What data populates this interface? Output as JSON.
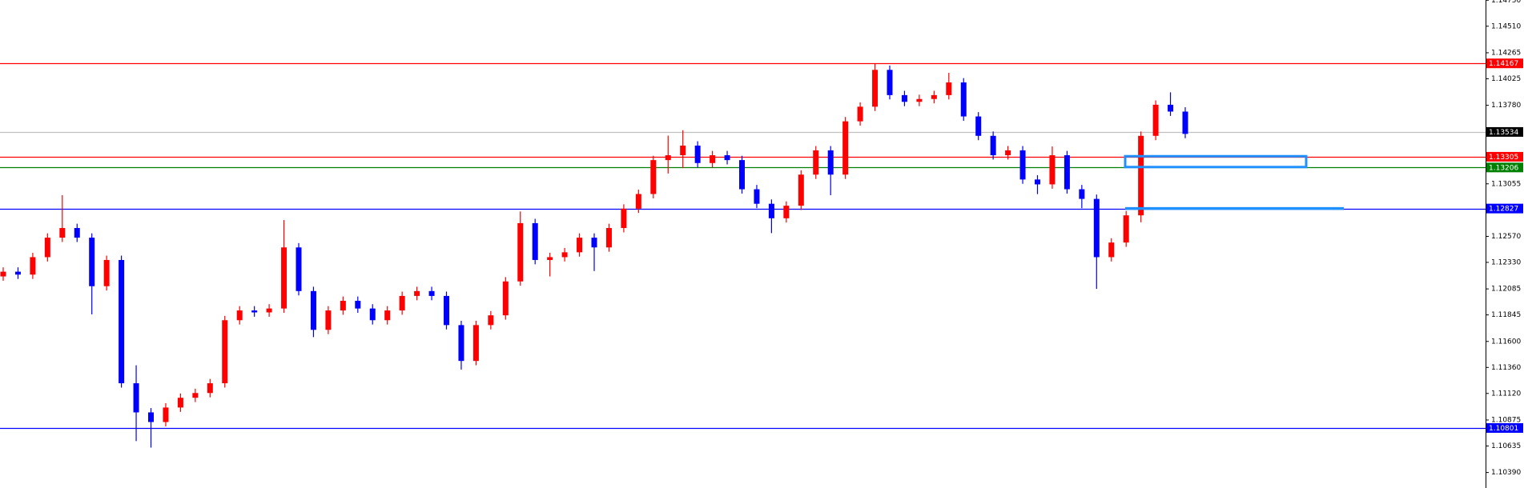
{
  "chart_data": {
    "type": "candlestick",
    "up_color": "#ff0000",
    "down_color": "#0000ff",
    "ylim": [
      1.10247,
      1.14752
    ],
    "yticks": [
      {
        "value": 1.1475,
        "label": "1.14750"
      },
      {
        "value": 1.1451,
        "label": "1.14510"
      },
      1.14265,
      1.14025,
      {
        "value": 1.1378,
        "label": "1.13780"
      },
      1.13055,
      {
        "value": 1.1257,
        "label": "1.12570"
      },
      {
        "value": 1.1233,
        "label": "1.12330"
      },
      1.12085,
      1.11845,
      {
        "value": 1.116,
        "label": "1.11600"
      },
      {
        "value": 1.1136,
        "label": "1.11360"
      },
      {
        "value": 1.1112,
        "label": "1.11120"
      },
      1.10875,
      1.10635,
      {
        "value": 1.1039,
        "label": "1.10390"
      }
    ],
    "open": [
      1.122,
      1.12244,
      1.12217,
      1.12378,
      1.12558,
      1.12647,
      1.12558,
      1.1211,
      1.12352,
      1.11214,
      1.10945,
      1.10856,
      1.1099,
      1.1108,
      1.11124,
      1.11214,
      1.11796,
      1.11886,
      1.11868,
      1.11904,
      1.12468,
      1.12065,
      1.11707,
      1.11886,
      1.11975,
      1.11904,
      1.11796,
      1.11886,
      1.1202,
      1.12065,
      1.1202,
      1.11751,
      1.1142,
      1.11751,
      1.11841,
      1.12154,
      1.12692,
      1.12352,
      1.12378,
      1.12423,
      1.12558,
      1.12468,
      1.12647,
      1.12826,
      1.12961,
      1.13274,
      1.13319,
      1.13408,
      1.13247,
      1.13319,
      1.13274,
      1.13005,
      1.12871,
      1.12737,
      1.12853,
      1.1314,
      1.13364,
      1.1314,
      1.13632,
      1.13767,
      1.14107,
      1.13874,
      1.13812,
      1.13838,
      1.13874,
      1.13991,
      1.13677,
      1.13498,
      1.13319,
      1.13364,
      1.13095,
      1.1305,
      1.13319,
      1.13005,
      1.12916,
      1.12378,
      1.12513,
      1.12764,
      1.13498,
      1.13785,
      1.13722
    ],
    "high": [
      1.12284,
      1.12284,
      1.12418,
      1.12598,
      1.1295,
      1.12687,
      1.12598,
      1.12392,
      1.12392,
      1.1138,
      1.10985,
      1.1103,
      1.1112,
      1.11164,
      1.11254,
      1.11836,
      1.11926,
      1.11926,
      1.11944,
      1.1272,
      1.12508,
      1.12105,
      1.11926,
      1.12015,
      1.12015,
      1.11944,
      1.11926,
      1.1206,
      1.12105,
      1.12105,
      1.1206,
      1.11791,
      1.11791,
      1.11881,
      1.12194,
      1.128,
      1.12732,
      1.12418,
      1.12463,
      1.12598,
      1.12598,
      1.12687,
      1.12866,
      1.13001,
      1.13314,
      1.135,
      1.1355,
      1.13448,
      1.13359,
      1.13359,
      1.13314,
      1.13045,
      1.12911,
      1.12893,
      1.1318,
      1.13404,
      1.13404,
      1.13672,
      1.13807,
      1.14167,
      1.14147,
      1.13914,
      1.13878,
      1.13914,
      1.1408,
      1.14031,
      1.13717,
      1.13538,
      1.13404,
      1.13404,
      1.13135,
      1.134,
      1.13359,
      1.13045,
      1.12956,
      1.12553,
      1.12804,
      1.13538,
      1.13825,
      1.139,
      1.13762
    ],
    "low": [
      1.1216,
      1.12177,
      1.12177,
      1.12338,
      1.12518,
      1.12518,
      1.1185,
      1.1207,
      1.11174,
      1.1068,
      1.1062,
      1.10816,
      1.1095,
      1.1104,
      1.11084,
      1.11174,
      1.11756,
      1.11828,
      1.11828,
      1.11864,
      1.12025,
      1.1164,
      1.11667,
      1.11846,
      1.11864,
      1.11756,
      1.11756,
      1.11846,
      1.1198,
      1.1198,
      1.11711,
      1.1134,
      1.1138,
      1.11711,
      1.11801,
      1.12114,
      1.12312,
      1.122,
      1.12338,
      1.12383,
      1.1225,
      1.12428,
      1.12607,
      1.12786,
      1.12921,
      1.1315,
      1.132,
      1.13207,
      1.13207,
      1.13234,
      1.12965,
      1.12831,
      1.126,
      1.12697,
      1.12813,
      1.131,
      1.1295,
      1.131,
      1.13592,
      1.13727,
      1.13834,
      1.13772,
      1.13772,
      1.13798,
      1.13834,
      1.13637,
      1.13458,
      1.13279,
      1.13279,
      1.13055,
      1.1296,
      1.1301,
      1.12965,
      1.1283,
      1.12085,
      1.12338,
      1.12473,
      1.127,
      1.13458,
      1.13682,
      1.13476
    ],
    "close": [
      1.12244,
      1.12217,
      1.12378,
      1.12558,
      1.12647,
      1.12558,
      1.1211,
      1.12352,
      1.11214,
      1.10945,
      1.10856,
      1.1099,
      1.1108,
      1.11124,
      1.11214,
      1.11796,
      1.11886,
      1.11868,
      1.11904,
      1.12468,
      1.12065,
      1.11707,
      1.11886,
      1.11975,
      1.11904,
      1.11796,
      1.11886,
      1.1202,
      1.12065,
      1.1202,
      1.11751,
      1.1142,
      1.11751,
      1.11841,
      1.12154,
      1.12692,
      1.12352,
      1.12378,
      1.12423,
      1.12558,
      1.12468,
      1.12647,
      1.12826,
      1.12961,
      1.13274,
      1.13319,
      1.13408,
      1.13247,
      1.13319,
      1.13274,
      1.13005,
      1.12871,
      1.12737,
      1.12853,
      1.1314,
      1.13364,
      1.1314,
      1.13632,
      1.13767,
      1.14107,
      1.13874,
      1.13812,
      1.13838,
      1.13874,
      1.13991,
      1.13677,
      1.13498,
      1.13319,
      1.13364,
      1.13095,
      1.1305,
      1.13319,
      1.13005,
      1.12916,
      1.12378,
      1.12513,
      1.12764,
      1.13498,
      1.13785,
      1.13722,
      1.13516
    ],
    "levels": [
      {
        "price": 1.14167,
        "color": "#ff0000"
      },
      {
        "price": 1.13534,
        "color": "#c0c0c0",
        "label_color": "#000000"
      },
      {
        "price": 1.13305,
        "color": "#ff0000"
      },
      {
        "price": 1.13206,
        "color": "#008000"
      },
      {
        "price": 1.12827,
        "color": "#0000ff"
      },
      {
        "price": 1.10801,
        "color": "#0000ff"
      }
    ],
    "zone": {
      "top": 1.1331,
      "bottom": 1.1321,
      "color": "#1e90ff"
    },
    "ray": {
      "price": 1.12827,
      "color": "#1e90ff"
    }
  }
}
